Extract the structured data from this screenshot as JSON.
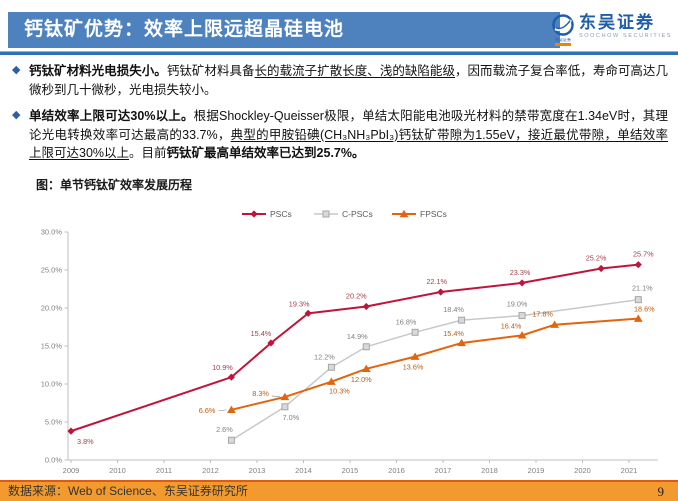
{
  "header": {
    "title": "钙钛矿优势：效率上限远超晶硅电池"
  },
  "logo": {
    "name": "东吴证券",
    "subtitle": "SOOCHOW SECURITIES",
    "badge": "东吴证券"
  },
  "colors": {
    "banner_blue": "#4E82BE",
    "rule_blue": "#2E74B5",
    "logo_blue": "#1F5CA9",
    "bullet_blue": "#2E5FA3",
    "footer_orange": "#F29A2E",
    "footer_rule_orange": "#DC5A12",
    "psc_red": "#C0143C",
    "cpsc_gray": "#C8C8C8",
    "fpsc_orange": "#E3640C"
  },
  "bullets": [
    {
      "marker": "◆",
      "segments": [
        {
          "t": "钙钛矿材料光电损失小。",
          "b": true
        },
        {
          "t": "钙钛矿材料具备"
        },
        {
          "t": "长的载流子扩散长度、浅的缺陷能级",
          "u": true
        },
        {
          "t": "，因而载流子复合率低，寿命可高达几微秒到几十微秒，光电损失较小。"
        }
      ]
    },
    {
      "marker": "◆",
      "segments": [
        {
          "t": "单结效率上限可达30%以上。",
          "b": true
        },
        {
          "t": "根据Shockley-Queisser极限，单结太阳能电池吸光材料的禁带宽度在1.34eV时，其理论光电转换效率可达最高的33.7%，"
        },
        {
          "t": "典型的甲胺铅碘(CH₃NH₃PbI₃)钙钛矿带隙为1.55eV，接近最优带隙，单结效率上限可达30%以上",
          "u": true
        },
        {
          "t": "。目前"
        },
        {
          "t": "钙钛矿最高单结效率已达到25.7%。",
          "b": true
        }
      ]
    }
  ],
  "figure": {
    "caption": "图：单节钙钛矿效率发展历程"
  },
  "chart_data": {
    "type": "line",
    "title": "单节钙钛矿效率发展历程",
    "xlabel": "",
    "ylabel": "",
    "ylim": [
      0,
      30
    ],
    "grid": false,
    "legend_position": "top-center",
    "y_ticks": [
      {
        "v": 0,
        "label": "0.0%"
      },
      {
        "v": 5,
        "label": "5.0%"
      },
      {
        "v": 10,
        "label": "10.0%"
      },
      {
        "v": 15,
        "label": "15.0%"
      },
      {
        "v": 20,
        "label": "20.0%"
      },
      {
        "v": 25,
        "label": "25.0%"
      },
      {
        "v": 30,
        "label": "30.0%"
      }
    ],
    "x_ticks": [
      "2009",
      "2010",
      "2011",
      "2012",
      "2013",
      "2014",
      "2015",
      "2016",
      "2017",
      "2018",
      "2019",
      "2020",
      "2021"
    ],
    "series": [
      {
        "name": "PSCs",
        "color": "#C0143C",
        "labelColor": "#9E3F4C",
        "marker": "diamond",
        "width": 2,
        "points": [
          {
            "x": 2009.0,
            "v": 3.8,
            "dx": 6,
            "dy": 13,
            "a": "start"
          },
          {
            "x": 2012.45,
            "v": 10.9,
            "dx": -9,
            "dy": -7
          },
          {
            "x": 2013.3,
            "v": 15.4,
            "dx": -10,
            "dy": -7
          },
          {
            "x": 2014.1,
            "v": 19.3,
            "dx": -9,
            "dy": -7
          },
          {
            "x": 2015.35,
            "v": 20.2,
            "dx": -10,
            "dy": -8
          },
          {
            "x": 2016.95,
            "v": 22.1,
            "dx": -4,
            "dy": -8
          },
          {
            "x": 2018.7,
            "v": 23.3,
            "dx": -2,
            "dy": -8
          },
          {
            "x": 2020.4,
            "v": 25.2,
            "dx": -5,
            "dy": -8
          },
          {
            "x": 2021.2,
            "v": 25.7,
            "dx": 5,
            "dy": -8
          }
        ]
      },
      {
        "name": "C-PSCs",
        "color": "#C8C8C8",
        "labelColor": "#7F7F7F",
        "marker": "square",
        "width": 1.5,
        "points": [
          {
            "x": 2012.45,
            "v": 2.6,
            "dx": -7,
            "dy": -8
          },
          {
            "x": 2013.6,
            "v": 7.0,
            "dx": 6,
            "dy": 13
          },
          {
            "x": 2014.6,
            "v": 12.2,
            "dx": -7,
            "dy": -8
          },
          {
            "x": 2015.35,
            "v": 14.9,
            "dx": -9,
            "dy": -8
          },
          {
            "x": 2016.4,
            "v": 16.8,
            "dx": -9,
            "dy": -8
          },
          {
            "x": 2017.4,
            "v": 18.4,
            "dx": -8,
            "dy": -8
          },
          {
            "x": 2018.7,
            "v": 19.0,
            "dx": -5,
            "dy": -9
          },
          {
            "x": 2021.2,
            "v": 21.1,
            "dx": 4,
            "dy": -9
          }
        ]
      },
      {
        "name": "FPSCs",
        "color": "#E3640C",
        "labelColor": "#BA5B10",
        "marker": "triangle",
        "width": 2,
        "points": [
          {
            "x": 2012.45,
            "v": 6.6,
            "dx": -16,
            "dy": 3,
            "a": "end",
            "leader": true
          },
          {
            "x": 2013.6,
            "v": 8.3,
            "dx": -16,
            "dy": -1,
            "a": "end",
            "leader": true
          },
          {
            "x": 2014.6,
            "v": 10.3,
            "dx": 8,
            "dy": 12
          },
          {
            "x": 2015.35,
            "v": 12.0,
            "dx": -5,
            "dy": 13
          },
          {
            "x": 2016.4,
            "v": 13.6,
            "dx": -2,
            "dy": 13
          },
          {
            "x": 2017.4,
            "v": 15.4,
            "dx": -8,
            "dy": -7
          },
          {
            "x": 2018.7,
            "v": 16.4,
            "dx": -11,
            "dy": -7
          },
          {
            "x": 2019.4,
            "v": 17.8,
            "dx": -12,
            "dy": -8
          },
          {
            "x": 2021.2,
            "v": 18.6,
            "dx": 6,
            "dy": -7
          }
        ]
      }
    ]
  },
  "footer": {
    "source": "数据来源：Web of Science、东吴证券研究所",
    "page": "9"
  }
}
